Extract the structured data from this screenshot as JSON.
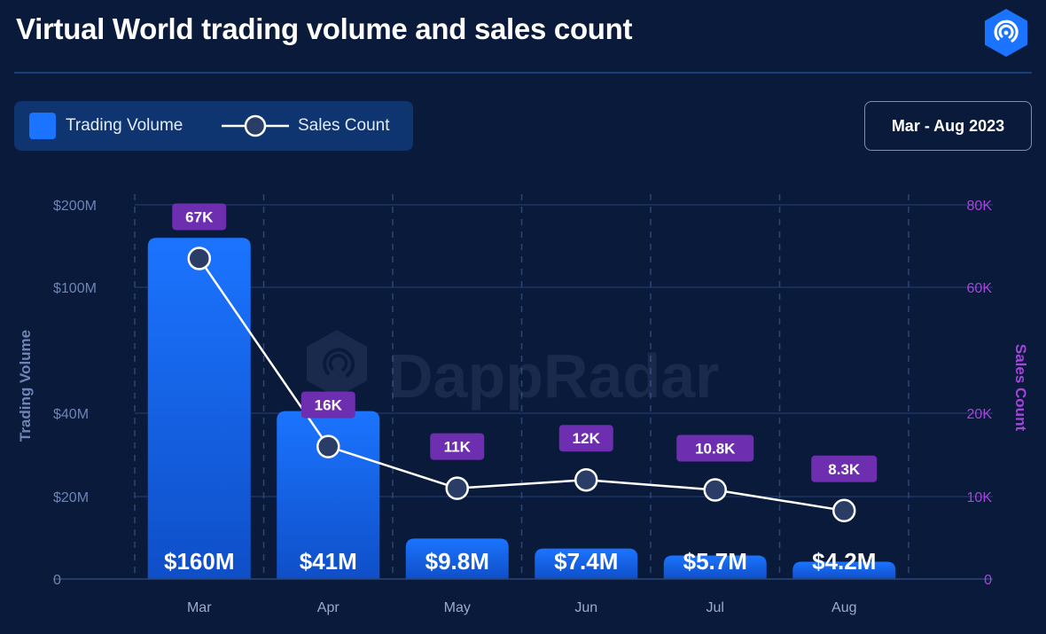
{
  "header": {
    "title": "Virtual World trading volume and sales count",
    "date_range": "Mar - Aug 2023",
    "watermark": "DappRadar"
  },
  "colors": {
    "background": "#0a1a3b",
    "bar": "#1b74ff",
    "bar_light": "#2a86ff",
    "line": "#ffffff",
    "marker_fill": "#2a3d66",
    "label_badge": "#6d2fb0",
    "right_axis": "#a347d8",
    "left_axis": "#6d84b6"
  },
  "icons": {
    "brand": "dappradar-logo-icon"
  },
  "chart_data": {
    "type": "bar",
    "title": "Virtual World trading volume and sales count",
    "categories": [
      "Mar",
      "Apr",
      "May",
      "Jun",
      "Jul",
      "Aug"
    ],
    "legend_position": "top-left",
    "grid": true,
    "y_left": {
      "label": "Trading Volume",
      "ticks": [
        0,
        20,
        40,
        100,
        200
      ],
      "tick_labels": [
        "0",
        "$20M",
        "$40M",
        "$100M",
        "$200M"
      ],
      "unit": "USD millions"
    },
    "y_right": {
      "label": "Sales Count",
      "ticks": [
        0,
        10,
        20,
        60,
        80
      ],
      "tick_labels": [
        "0",
        "10K",
        "20K",
        "60K",
        "80K"
      ],
      "unit": "thousands"
    },
    "series": [
      {
        "name": "Trading Volume",
        "type": "bar",
        "axis": "left",
        "values": [
          160,
          41,
          9.8,
          7.4,
          5.7,
          4.2
        ],
        "labels": [
          "$160M",
          "$41M",
          "$9.8M",
          "$7.4M",
          "$5.7M",
          "$4.2M"
        ]
      },
      {
        "name": "Sales Count",
        "type": "line",
        "axis": "right",
        "values": [
          67,
          16,
          11,
          12,
          10.8,
          8.3
        ],
        "labels": [
          "67K",
          "16K",
          "11K",
          "12K",
          "10.8K",
          "8.3K"
        ]
      }
    ]
  }
}
